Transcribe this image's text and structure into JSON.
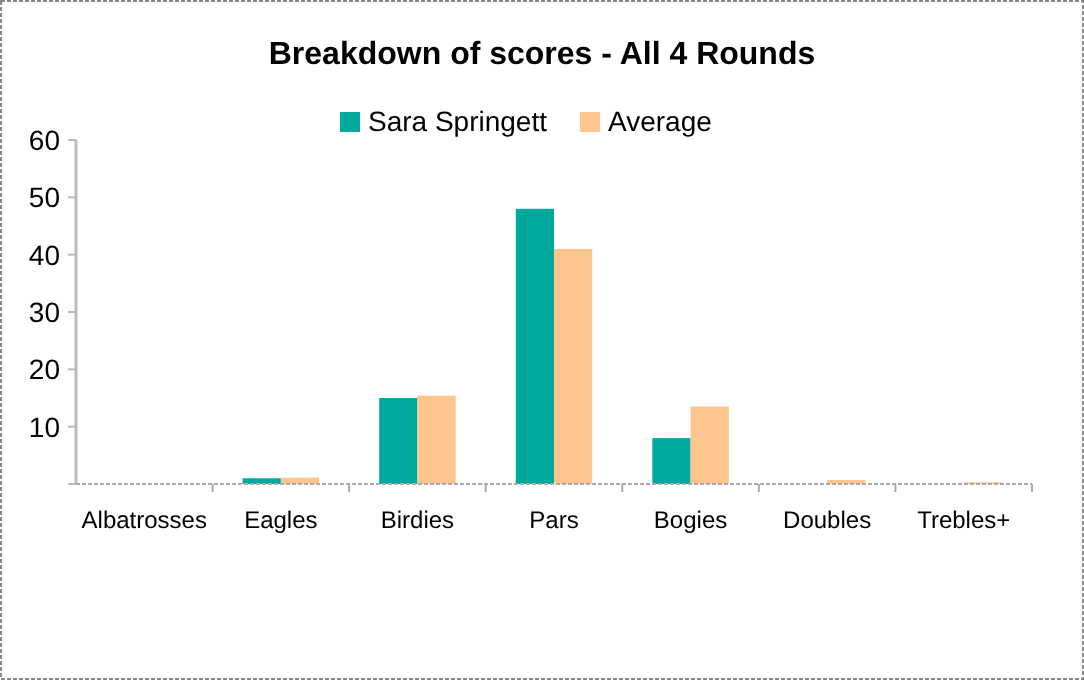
{
  "chart_data": {
    "type": "bar",
    "title": "Breakdown of scores - All 4 Rounds",
    "categories": [
      "Albatrosses",
      "Eagles",
      "Birdies",
      "Pars",
      "Bogies",
      "Doubles",
      "Trebles+"
    ],
    "series": [
      {
        "name": "Sara Springett",
        "color": "#00a99d",
        "values": [
          0,
          1,
          15,
          48,
          8,
          0,
          0
        ]
      },
      {
        "name": "Average",
        "color": "#fcc58e",
        "values": [
          0,
          1.1,
          15.4,
          41,
          13.5,
          0.7,
          0.3
        ]
      }
    ],
    "ylim": [
      0,
      60
    ],
    "yticks": [
      {
        "value": 0,
        "label": null
      },
      10,
      20,
      30,
      40,
      50,
      60
    ],
    "grid": false,
    "legend": "top"
  }
}
